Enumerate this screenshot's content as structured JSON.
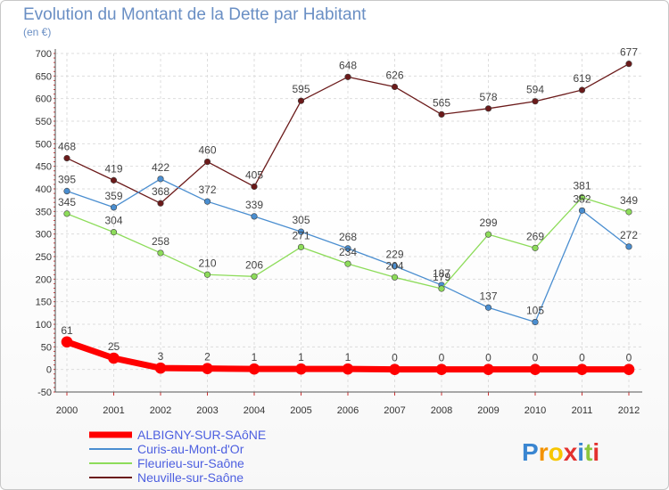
{
  "chart_data": {
    "type": "line",
    "title": "Evolution du Montant de la Dette par Habitant",
    "subtitle": "(en €)",
    "categories": [
      "2000",
      "2001",
      "2002",
      "2003",
      "2004",
      "2005",
      "2006",
      "2007",
      "2008",
      "2009",
      "2010",
      "2011",
      "2012"
    ],
    "ylim": [
      -50,
      700
    ],
    "yticks": [
      -50,
      0,
      50,
      100,
      150,
      200,
      250,
      300,
      350,
      400,
      450,
      500,
      550,
      600,
      650,
      700
    ],
    "grid": true,
    "legend_position": "bottom-left",
    "series": [
      {
        "name": "ALBIGNY-SUR-SAôNE",
        "color": "#ff0000",
        "values": [
          61,
          25,
          3,
          2,
          1,
          1,
          1,
          0,
          0,
          0,
          0,
          0,
          0
        ]
      },
      {
        "name": "Curis-au-Mont-d'Or",
        "color": "#4a8ed0",
        "values": [
          395,
          359,
          422,
          372,
          339,
          305,
          268,
          229,
          187,
          137,
          105,
          352,
          272
        ]
      },
      {
        "name": "Fleurieu-sur-Saône",
        "color": "#8ddc5a",
        "values": [
          345,
          304,
          258,
          210,
          206,
          271,
          234,
          204,
          179,
          299,
          269,
          381,
          349
        ]
      },
      {
        "name": "Neuville-sur-Saône",
        "color": "#6b1a1a",
        "values": [
          468,
          419,
          368,
          460,
          405,
          595,
          648,
          626,
          565,
          578,
          594,
          619,
          677
        ]
      }
    ]
  },
  "logo": {
    "letters": [
      "P",
      "r",
      "o",
      "x",
      "i",
      "t",
      "i"
    ],
    "colors": [
      "#3a86d1",
      "#f39200",
      "#f7c600",
      "#e3312f",
      "#3a86d1",
      "#8cc63e",
      "#e3312f"
    ]
  }
}
